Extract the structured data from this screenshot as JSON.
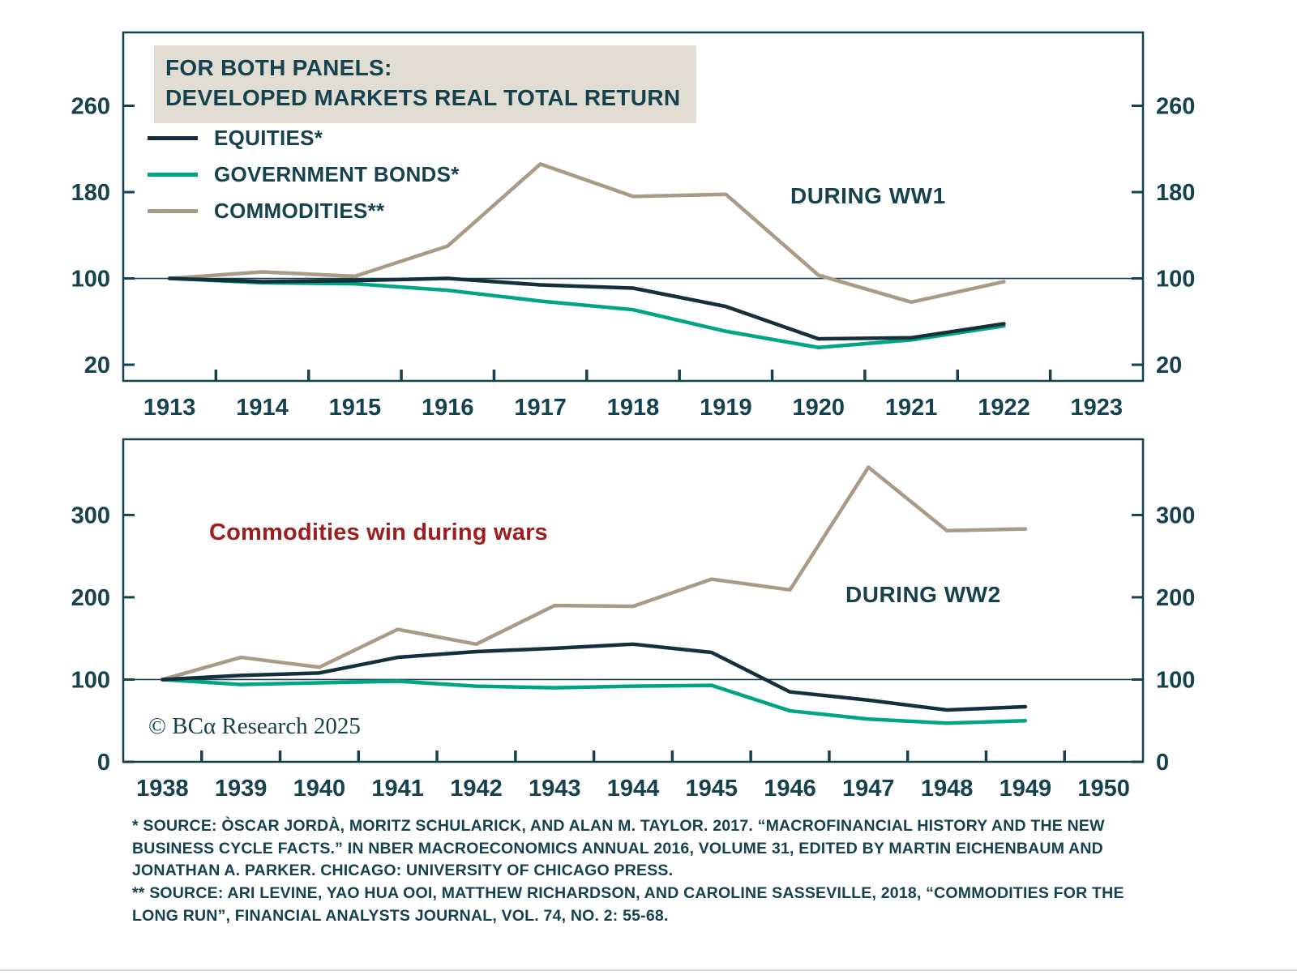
{
  "colors": {
    "ink": "#16424f",
    "equities": "#14303c",
    "government_bonds": "#00a584",
    "commodities": "#a99b85",
    "headline_red": "#a01d1d",
    "legend_box_bg": "#e2ddd3"
  },
  "legend": {
    "title_line1": "FOR BOTH PANELS:",
    "title_line2": "DEVELOPED MARKETS REAL TOTAL RETURN",
    "items": [
      {
        "label": "EQUITIES*",
        "color": "#14303c"
      },
      {
        "label": "GOVERNMENT BONDS*",
        "color": "#00a584"
      },
      {
        "label": "COMMODITIES**",
        "color": "#a99b85"
      }
    ]
  },
  "annotations": {
    "headline": "Commodities win during wars",
    "headline_color": "#a01d1d",
    "copyright": "© BCα Research 2025"
  },
  "footnotes": [
    "*  SOURCE: ÒSCAR JORDÀ, MORITZ SCHULARICK, AND ALAN M. TAYLOR. 2017. “MACROFINANCIAL HISTORY AND THE NEW BUSINESS CYCLE FACTS.” IN NBER MACROECONOMICS ANNUAL 2016, VOLUME 31, EDITED BY MARTIN EICHENBAUM AND JONATHAN A. PARKER. CHICAGO: UNIVERSITY OF CHICAGO PRESS.",
    "** SOURCE: ARI LEVINE, YAO HUA OOI, MATTHEW RICHARDSON, AND CAROLINE SASSEVILLE, 2018, “COMMODITIES FOR THE LONG RUN”, FINANCIAL ANALYSTS JOURNAL, VOL. 74, NO. 2: 55-68."
  ],
  "chart_data": [
    {
      "type": "line",
      "annotation": "DURING WW1",
      "x": [
        1913,
        1914,
        1915,
        1916,
        1917,
        1918,
        1919,
        1920,
        1921,
        1922
      ],
      "xtick_labels": [
        1913,
        1914,
        1915,
        1916,
        1917,
        1918,
        1919,
        1920,
        1921,
        1922,
        1923
      ],
      "xlim": [
        1912.5,
        1923.5
      ],
      "ylim": [
        5,
        328
      ],
      "yticks": [
        20,
        100,
        180,
        260
      ],
      "ref_line": 100,
      "grid": false,
      "legend_position": "top-left",
      "series": [
        {
          "name": "EQUITIES*",
          "color": "#14303c",
          "values": [
            100,
            97,
            98,
            100,
            94,
            91,
            74,
            44,
            45,
            58
          ]
        },
        {
          "name": "GOVERNMENT BONDS*",
          "color": "#00a584",
          "values": [
            100,
            96,
            95,
            89,
            79,
            71,
            51,
            36,
            43,
            56
          ]
        },
        {
          "name": "COMMODITIES**",
          "color": "#a99b85",
          "values": [
            100,
            106,
            102,
            130,
            206,
            176,
            178,
            103,
            78,
            97
          ]
        }
      ]
    },
    {
      "type": "line",
      "annotation": "DURING WW2",
      "x": [
        1938,
        1939,
        1940,
        1941,
        1942,
        1943,
        1944,
        1945,
        1946,
        1947,
        1948,
        1949
      ],
      "xtick_labels": [
        1938,
        1939,
        1940,
        1941,
        1942,
        1943,
        1944,
        1945,
        1946,
        1947,
        1948,
        1949,
        1950
      ],
      "xlim": [
        1937.5,
        1950.5
      ],
      "ylim": [
        0,
        392
      ],
      "yticks": [
        0,
        100,
        200,
        300
      ],
      "ref_line": 100,
      "grid": false,
      "series": [
        {
          "name": "EQUITIES*",
          "color": "#14303c",
          "values": [
            100,
            105,
            108,
            127,
            134,
            138,
            143,
            133,
            85,
            75,
            63,
            67
          ]
        },
        {
          "name": "GOVERNMENT BONDS*",
          "color": "#00a584",
          "values": [
            100,
            94,
            96,
            98,
            92,
            90,
            92,
            93,
            62,
            52,
            47,
            50
          ]
        },
        {
          "name": "COMMODITIES**",
          "color": "#a99b85",
          "values": [
            100,
            127,
            115,
            161,
            143,
            190,
            189,
            222,
            209,
            358,
            281,
            283
          ]
        }
      ]
    }
  ]
}
